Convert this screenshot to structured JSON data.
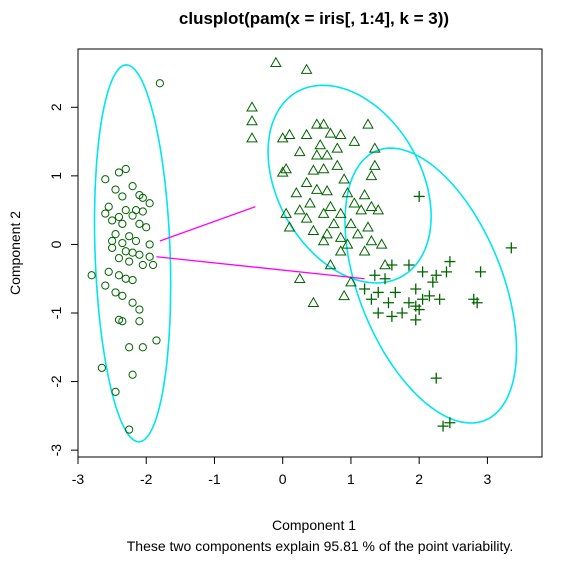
{
  "chart_data": {
    "type": "scatter",
    "title": "clusplot(pam(x = iris[, 1:4], k = 3))",
    "xlabel": "Component 1",
    "ylabel": "Component 2",
    "subtitle": "These two components explain 95.81 % of the point variability.",
    "xlim": [
      -3.0,
      3.8
    ],
    "ylim": [
      -3.1,
      2.85
    ],
    "xticks": [
      -3,
      -2,
      -1,
      0,
      1,
      2,
      3
    ],
    "yticks": [
      -3,
      -2,
      -1,
      0,
      1,
      2
    ],
    "colors": {
      "points": "#006400",
      "ellipse": "#00e5ee",
      "segment": "#ff00ff",
      "axis": "#000000"
    },
    "clusters": [
      {
        "cluster": 1,
        "marker": "circle",
        "ellipse": {
          "center": [
            -2.2,
            -0.13
          ],
          "semi_axes": [
            0.55,
            2.75
          ],
          "angle_deg": 2
        },
        "points": [
          [
            -1.8,
            2.35
          ],
          [
            -2.6,
            0.95
          ],
          [
            -2.4,
            1.05
          ],
          [
            -2.3,
            1.1
          ],
          [
            -2.2,
            0.85
          ],
          [
            -2.45,
            0.8
          ],
          [
            -2.35,
            0.7
          ],
          [
            -2.1,
            0.72
          ],
          [
            -2.05,
            0.68
          ],
          [
            -1.95,
            0.6
          ],
          [
            -2.55,
            0.55
          ],
          [
            -2.3,
            0.5
          ],
          [
            -2.15,
            0.5
          ],
          [
            -2.05,
            0.48
          ],
          [
            -2.6,
            0.45
          ],
          [
            -2.4,
            0.4
          ],
          [
            -2.2,
            0.42
          ],
          [
            -2.5,
            0.35
          ],
          [
            -2.35,
            0.3
          ],
          [
            -2.1,
            0.3
          ],
          [
            -2.0,
            0.25
          ],
          [
            -2.45,
            0.15
          ],
          [
            -2.25,
            0.12
          ],
          [
            -2.5,
            0.05
          ],
          [
            -2.35,
            0.02
          ],
          [
            -2.15,
            0.05
          ],
          [
            -1.95,
            0.0
          ],
          [
            -2.5,
            -0.05
          ],
          [
            -2.3,
            -0.1
          ],
          [
            -2.2,
            -0.12
          ],
          [
            -2.1,
            -0.15
          ],
          [
            -1.95,
            -0.18
          ],
          [
            -2.4,
            -0.2
          ],
          [
            -2.25,
            -0.25
          ],
          [
            -2.05,
            -0.3
          ],
          [
            -1.9,
            -0.3
          ],
          [
            -2.8,
            -0.45
          ],
          [
            -2.55,
            -0.4
          ],
          [
            -2.4,
            -0.45
          ],
          [
            -2.3,
            -0.5
          ],
          [
            -2.2,
            -0.52
          ],
          [
            -2.6,
            -0.6
          ],
          [
            -2.45,
            -0.7
          ],
          [
            -2.35,
            -0.75
          ],
          [
            -2.2,
            -0.85
          ],
          [
            -2.1,
            -0.95
          ],
          [
            -2.4,
            -1.1
          ],
          [
            -2.35,
            -1.12
          ],
          [
            -2.1,
            -1.12
          ],
          [
            -2.25,
            -1.5
          ],
          [
            -2.05,
            -1.5
          ],
          [
            -1.85,
            -1.4
          ],
          [
            -2.65,
            -1.8
          ],
          [
            -2.2,
            -1.9
          ],
          [
            -2.45,
            -2.15
          ],
          [
            -2.25,
            -2.7
          ]
        ]
      },
      {
        "cluster": 2,
        "marker": "triangle",
        "ellipse": {
          "center": [
            0.98,
            0.88
          ],
          "semi_axes": [
            1.55,
            1.05
          ],
          "angle_deg": -60
        },
        "points": [
          [
            -0.1,
            2.65
          ],
          [
            0.35,
            2.55
          ],
          [
            -0.45,
            2.0
          ],
          [
            -0.45,
            1.8
          ],
          [
            -0.45,
            1.55
          ],
          [
            0.85,
            1.6
          ],
          [
            1.25,
            1.75
          ],
          [
            0.5,
            1.75
          ],
          [
            0.6,
            1.75
          ],
          [
            0.7,
            1.62
          ],
          [
            0.35,
            1.6
          ],
          [
            0.1,
            1.6
          ],
          [
            1.05,
            1.5
          ],
          [
            0.0,
            1.55
          ],
          [
            0.55,
            1.45
          ],
          [
            0.8,
            1.4
          ],
          [
            0.25,
            1.35
          ],
          [
            0.5,
            1.3
          ],
          [
            0.65,
            1.3
          ],
          [
            1.35,
            1.4
          ],
          [
            1.35,
            1.15
          ],
          [
            0.8,
            1.15
          ],
          [
            0.6,
            1.1
          ],
          [
            0.45,
            1.08
          ],
          [
            0.05,
            1.1
          ],
          [
            0.0,
            1.05
          ],
          [
            1.3,
            1.0
          ],
          [
            0.9,
            0.95
          ],
          [
            0.35,
            0.9
          ],
          [
            0.5,
            0.8
          ],
          [
            0.65,
            0.78
          ],
          [
            0.95,
            0.75
          ],
          [
            0.2,
            0.75
          ],
          [
            1.2,
            0.72
          ],
          [
            0.4,
            0.6
          ],
          [
            0.7,
            0.55
          ],
          [
            1.05,
            0.6
          ],
          [
            1.3,
            0.55
          ],
          [
            0.25,
            0.5
          ],
          [
            0.6,
            0.45
          ],
          [
            0.85,
            0.45
          ],
          [
            1.15,
            0.5
          ],
          [
            1.4,
            0.5
          ],
          [
            0.05,
            0.45
          ],
          [
            0.35,
            0.38
          ],
          [
            0.75,
            0.3
          ],
          [
            1.0,
            0.3
          ],
          [
            1.25,
            0.25
          ],
          [
            0.1,
            0.25
          ],
          [
            0.45,
            0.2
          ],
          [
            0.65,
            0.15
          ],
          [
            0.85,
            0.1
          ],
          [
            1.1,
            0.15
          ],
          [
            1.3,
            0.05
          ],
          [
            0.6,
            0.05
          ],
          [
            0.95,
            0.0
          ],
          [
            1.45,
            0.0
          ],
          [
            0.85,
            -0.1
          ],
          [
            1.2,
            -0.1
          ],
          [
            0.7,
            -0.3
          ],
          [
            1.5,
            -0.3
          ],
          [
            0.25,
            -0.5
          ],
          [
            1.0,
            -0.55
          ],
          [
            0.9,
            -0.75
          ],
          [
            0.45,
            -0.85
          ]
        ]
      },
      {
        "cluster": 3,
        "marker": "plus",
        "ellipse": {
          "center": [
            2.17,
            -0.6
          ],
          "semi_axes": [
            2.12,
            1.05
          ],
          "angle_deg": -68
        },
        "points": [
          [
            2.0,
            0.7
          ],
          [
            3.35,
            -0.05
          ],
          [
            1.85,
            -0.3
          ],
          [
            2.45,
            -0.25
          ],
          [
            2.9,
            -0.4
          ],
          [
            1.6,
            -0.3
          ],
          [
            2.05,
            -0.4
          ],
          [
            2.25,
            -0.45
          ],
          [
            2.4,
            -0.4
          ],
          [
            1.35,
            -0.45
          ],
          [
            1.5,
            -0.5
          ],
          [
            2.2,
            -0.55
          ],
          [
            1.2,
            -0.65
          ],
          [
            1.4,
            -0.7
          ],
          [
            1.65,
            -0.7
          ],
          [
            1.95,
            -0.65
          ],
          [
            2.15,
            -0.75
          ],
          [
            2.3,
            -0.8
          ],
          [
            2.05,
            -0.8
          ],
          [
            1.55,
            -0.85
          ],
          [
            1.85,
            -0.85
          ],
          [
            1.3,
            -0.8
          ],
          [
            2.8,
            -0.8
          ],
          [
            2.85,
            -0.85
          ],
          [
            1.95,
            -0.9
          ],
          [
            2.0,
            -0.95
          ],
          [
            1.4,
            -1.0
          ],
          [
            1.6,
            -1.05
          ],
          [
            1.95,
            -1.1
          ],
          [
            1.75,
            -1.0
          ],
          [
            2.25,
            -1.95
          ],
          [
            2.35,
            -2.65
          ],
          [
            2.45,
            -2.6
          ]
        ]
      }
    ],
    "segments": [
      {
        "from": [
          -1.8,
          0.05
        ],
        "to": [
          -0.4,
          0.55
        ]
      },
      {
        "from": [
          -1.85,
          -0.18
        ],
        "to": [
          1.2,
          -0.5
        ]
      }
    ]
  }
}
